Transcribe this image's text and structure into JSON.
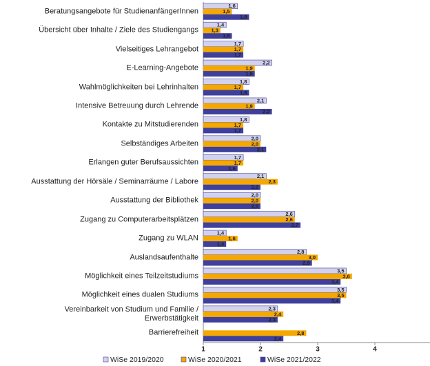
{
  "chart_data": {
    "type": "barh",
    "categories": [
      "Beratungsangebote für StudienanfängerInnen",
      "Übersicht über Inhalte / Ziele des Studiengangs",
      "Vielseitiges Lehrangebot",
      "E-Learning-Angebote",
      "Wahlmöglichkeiten bei Lehrinhalten",
      "Intensive Betreuung durch Lehrende",
      "Kontakte zu Mitstudierenden",
      "Selbständiges Arbeiten",
      "Erlangen guter Berufsaussichten",
      "Ausstattung der Hörsäle / Seminarräume / Labore",
      "Ausstattung der Bibliothek",
      "Zugang zu Computerarbeitsplätzen",
      "Zugang zu WLAN",
      "Auslandsaufenthalte",
      "Möglichkeit eines Teilzeitstudiums",
      "Möglichkeit eines dualen Studiums",
      "Vereinbarkeit von  Studium und Familie /\nErwerbstätigkeit",
      "Barrierefreiheit"
    ],
    "series": [
      {
        "name": "WiSe 2019/2020",
        "color": "#d2d2ee",
        "values": [
          1.6,
          1.4,
          1.7,
          2.2,
          1.8,
          2.1,
          1.8,
          2.0,
          1.7,
          2.1,
          2.0,
          2.6,
          1.4,
          2.8,
          3.5,
          3.5,
          2.3,
          null
        ],
        "value_labels": [
          "1,6",
          "1,4",
          "1,7",
          "2,2",
          "1,8",
          "2,1",
          "1,8",
          "2,0",
          "1,7",
          "2,1",
          "2,0",
          "2,6",
          "1,4",
          "2,8",
          "3,5",
          "3,5",
          "2,3",
          null
        ]
      },
      {
        "name": "WiSe 2020/2021",
        "color": "#f5a800",
        "values": [
          1.5,
          1.3,
          1.7,
          1.9,
          1.7,
          1.9,
          1.7,
          2.0,
          1.7,
          2.3,
          2.0,
          2.6,
          1.6,
          3.0,
          3.6,
          3.5,
          2.4,
          2.8
        ],
        "value_labels": [
          "1,5",
          "1,3",
          "1,7",
          "1,9",
          "1,7",
          "1,9",
          "1,7",
          "2,0",
          "1,7",
          "2,3",
          "2,0",
          "2,6",
          "1,6",
          "3,0",
          "3,6",
          "3,5",
          "2,4",
          "2,8"
        ]
      },
      {
        "name": "WiSe 2021/2022",
        "color": "#3f3f9c",
        "values": [
          1.8,
          1.5,
          1.7,
          1.9,
          1.8,
          2.2,
          1.7,
          2.1,
          1.6,
          2.0,
          2.0,
          2.7,
          1.4,
          2.9,
          3.4,
          3.4,
          2.3,
          2.4
        ],
        "value_labels": [
          "1,8",
          "1,5",
          "1,7",
          "1,9",
          "1,8",
          "2,2",
          "1,7",
          "2,1",
          "1,6",
          "2,0",
          "2,0",
          "2,7",
          "1,4",
          "2,9",
          "3,4",
          "3,4",
          "2,3",
          "2,4"
        ]
      }
    ],
    "xlim": [
      1,
      5
    ],
    "xticks": [
      1,
      2,
      3,
      4
    ],
    "grid": false,
    "legend": "bottom"
  }
}
